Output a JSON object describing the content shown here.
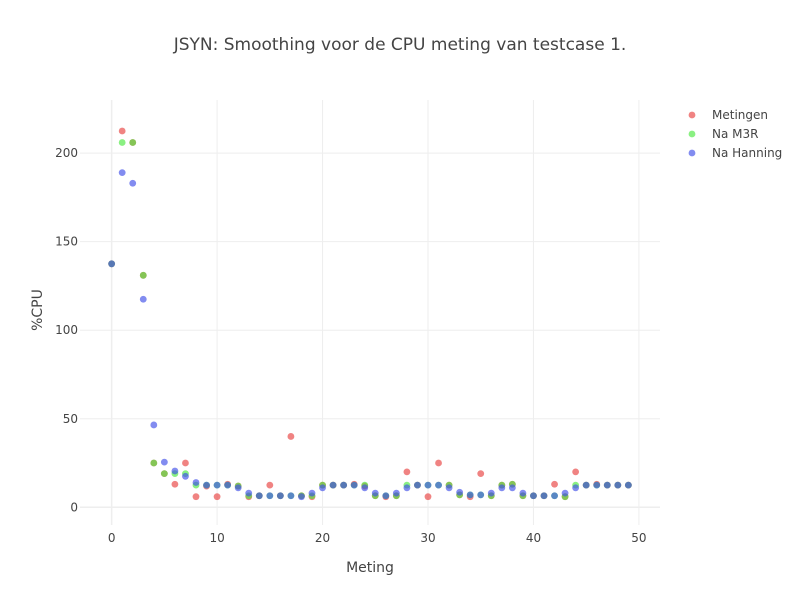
{
  "chart_data": {
    "type": "scatter",
    "title": "JSYN: Smoothing voor de CPU meting van testcase 1.",
    "xlabel": "Meting",
    "ylabel": "%CPU",
    "xlim": [
      -3,
      52
    ],
    "ylim": [
      -10,
      230
    ],
    "x_ticks": [
      0,
      10,
      20,
      30,
      40,
      50
    ],
    "y_ticks": [
      0,
      50,
      100,
      150,
      200
    ],
    "grid": true,
    "legend_position": "top-right",
    "x": [
      0,
      1,
      2,
      3,
      4,
      5,
      6,
      7,
      8,
      9,
      10,
      11,
      12,
      13,
      14,
      15,
      16,
      17,
      18,
      19,
      20,
      21,
      22,
      23,
      24,
      25,
      26,
      27,
      28,
      29,
      30,
      31,
      32,
      33,
      34,
      35,
      36,
      37,
      38,
      39,
      40,
      41,
      42,
      43,
      44,
      45,
      46,
      47,
      48,
      49
    ],
    "series": [
      {
        "name": "Metingen",
        "color": "#e8403f",
        "values": [
          137.5,
          212.5,
          206,
          131,
          25,
          19,
          13,
          25,
          6,
          12,
          6,
          13,
          12,
          6,
          6.5,
          12.5,
          6.5,
          40,
          6.5,
          6,
          12.5,
          12.5,
          12.5,
          13,
          12,
          6.5,
          6,
          6.5,
          20,
          12.5,
          6,
          25,
          12.5,
          7,
          6,
          19,
          6.5,
          12.5,
          13,
          6.5,
          6.5,
          6.5,
          13,
          6,
          20,
          12.5,
          13,
          12.5,
          12.5,
          12.5
        ]
      },
      {
        "name": "Na M3R",
        "color": "#4ce83f",
        "values": [
          137.5,
          206,
          206,
          131,
          25,
          19,
          19,
          19,
          12.5,
          12.5,
          12.5,
          12.5,
          12,
          6.5,
          6.5,
          6.5,
          6.5,
          6.5,
          6.5,
          6.5,
          12.5,
          12.5,
          12.5,
          12.5,
          12.5,
          6.5,
          6.5,
          6.5,
          12.5,
          12.5,
          12.5,
          12.5,
          12.5,
          7,
          7,
          7,
          6.5,
          12.5,
          13,
          6.5,
          6.5,
          6.5,
          6.5,
          6,
          12.5,
          12.5,
          12.5,
          12.5,
          12.5,
          12.5
        ]
      },
      {
        "name": "Na Hanning",
        "color": "#3f4ee8",
        "values": [
          137.5,
          189,
          183,
          117.5,
          46.5,
          25.5,
          20.5,
          17.5,
          14,
          12.5,
          12.5,
          12.5,
          11,
          8,
          6.5,
          6.5,
          6.5,
          6.5,
          6,
          8,
          11,
          12.5,
          12.5,
          12.5,
          11,
          8,
          6.5,
          8,
          11,
          12.5,
          12.5,
          12.5,
          11,
          8.5,
          7,
          7,
          8,
          11,
          11,
          8,
          6.5,
          6.5,
          6.5,
          8,
          11,
          12.5,
          12.5,
          12.5,
          12.5,
          12.5
        ]
      }
    ]
  }
}
